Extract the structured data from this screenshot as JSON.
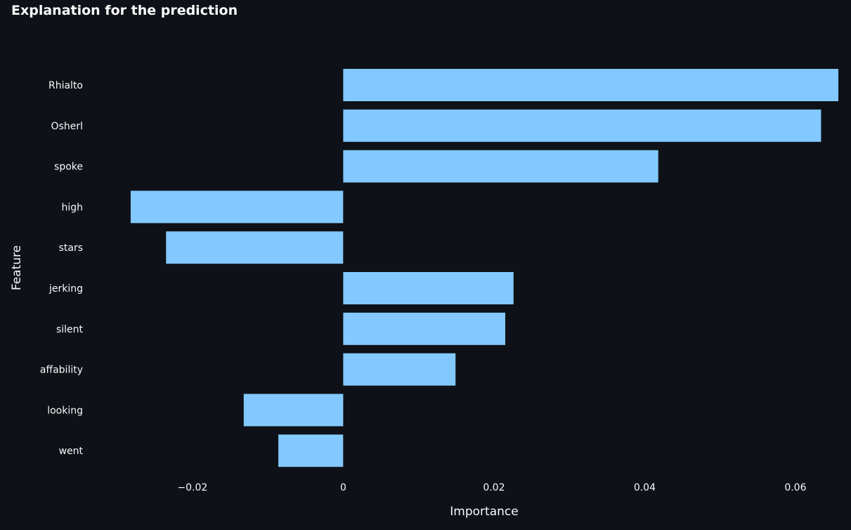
{
  "page": {
    "title": "Explanation for the prediction"
  },
  "chart_data": {
    "type": "bar",
    "orientation": "horizontal",
    "categories": [
      "Rhialto",
      "Osherl",
      "spoke",
      "high",
      "stars",
      "jerking",
      "silent",
      "affability",
      "looking",
      "went"
    ],
    "values": [
      0.0657,
      0.0634,
      0.0418,
      -0.0282,
      -0.0235,
      0.0226,
      0.0215,
      0.0149,
      -0.0132,
      -0.0086
    ],
    "title": "Explanation for the prediction",
    "xlabel": "Importance",
    "ylabel": "Feature",
    "xlim": [
      -0.0336,
      0.0657
    ],
    "xticks": [
      -0.02,
      0,
      0.02,
      0.04,
      0.06
    ],
    "xtick_labels": [
      "−0.02",
      "0",
      "0.02",
      "0.04",
      "0.06"
    ],
    "bar_color": "#83c9ff",
    "background_color": "#0e1117",
    "grid": false,
    "legend": "none"
  }
}
